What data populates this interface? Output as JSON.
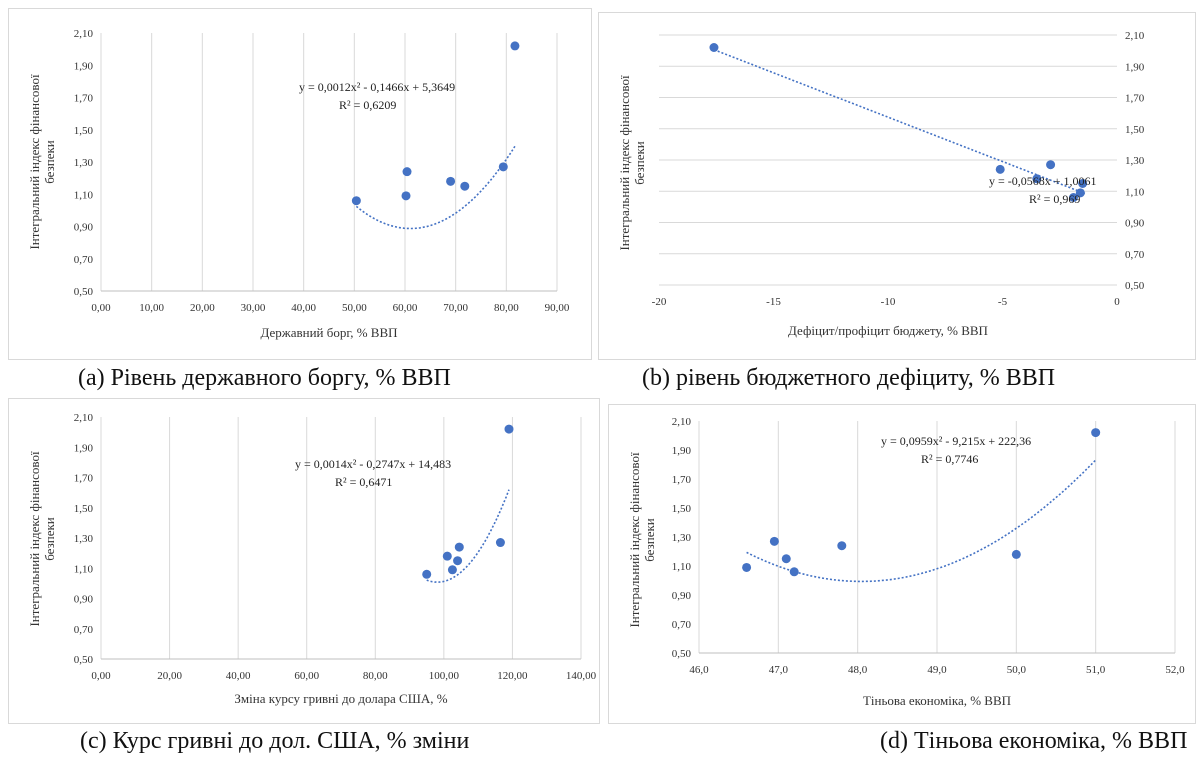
{
  "figures": [
    {
      "caption": "(a) Рівень державного боргу, % ВВП",
      "chart_data": {
        "type": "scatter",
        "xlabel": "Державний борг, % ВВП",
        "ylabel": "Інтегральний індекс фінансової безпеки",
        "xlim": [
          0,
          90
        ],
        "ylim": [
          0.5,
          2.1
        ],
        "x_ticks": [
          "0,00",
          "10,00",
          "20,00",
          "30,00",
          "40,00",
          "50,00",
          "60,00",
          "70,00",
          "80,00",
          "90,00"
        ],
        "y_ticks": [
          "0,50",
          "0,70",
          "0,90",
          "1,10",
          "1,30",
          "1,50",
          "1,70",
          "1,90",
          "2,10"
        ],
        "y_axis_side": "left",
        "grid": "vertical",
        "points": [
          {
            "x": 50.4,
            "y": 1.06
          },
          {
            "x": 60.2,
            "y": 1.09
          },
          {
            "x": 60.4,
            "y": 1.24
          },
          {
            "x": 69.0,
            "y": 1.18
          },
          {
            "x": 71.8,
            "y": 1.15
          },
          {
            "x": 79.4,
            "y": 1.27
          },
          {
            "x": 81.7,
            "y": 2.02
          }
        ],
        "trendline": {
          "kind": "poly2",
          "a": 0.0012,
          "b": -0.1466,
          "c": 5.3649,
          "x_range": [
            50.4,
            81.7
          ]
        },
        "equation": "y = 0,0012x² - 0,1466x + 5,3649",
        "r_squared": "R² = 0,6209"
      }
    },
    {
      "caption": "(b) рівень бюджетного дефіциту, % ВВП",
      "chart_data": {
        "type": "scatter",
        "xlabel": "Дефіцит/профіцит бюджету, % ВВП",
        "ylabel": "Інтегральний індекс фінансової безпеки",
        "xlim": [
          -20,
          0
        ],
        "ylim": [
          0.5,
          2.1
        ],
        "x_ticks": [
          "-20",
          "-15",
          "-10",
          "-5",
          "0"
        ],
        "y_ticks": [
          "0,50",
          "0,70",
          "0,90",
          "1,10",
          "1,30",
          "1,50",
          "1,70",
          "1,90",
          "2,10"
        ],
        "y_axis_side": "right",
        "grid": "horizontal",
        "points": [
          {
            "x": -17.6,
            "y": 2.02
          },
          {
            "x": -5.1,
            "y": 1.24
          },
          {
            "x": -3.5,
            "y": 1.18
          },
          {
            "x": -2.9,
            "y": 1.27
          },
          {
            "x": -1.9,
            "y": 1.06
          },
          {
            "x": -1.6,
            "y": 1.09
          },
          {
            "x": -1.5,
            "y": 1.15
          }
        ],
        "trendline": {
          "kind": "linear",
          "a": -0.0568,
          "b": 1.0061,
          "x_range": [
            -17.6,
            -1.4
          ]
        },
        "equation": "y = -0,0568x + 1,0061",
        "r_squared": "R² = 0,969"
      }
    },
    {
      "caption": "(c) Курс гривні до дол. США, % зміни",
      "chart_data": {
        "type": "scatter",
        "xlabel": "Зміна курсу гривні до долара США, %",
        "ylabel": "Інтегральний індекс фінансової безпеки",
        "xlim": [
          0,
          140
        ],
        "ylim": [
          0.5,
          2.1
        ],
        "x_ticks": [
          "0,00",
          "20,00",
          "40,00",
          "60,00",
          "80,00",
          "100,00",
          "120,00",
          "140,00"
        ],
        "y_ticks": [
          "0,50",
          "0,70",
          "0,90",
          "1,10",
          "1,30",
          "1,50",
          "1,70",
          "1,90",
          "2,10"
        ],
        "y_axis_side": "left",
        "grid": "vertical",
        "points": [
          {
            "x": 95.0,
            "y": 1.06
          },
          {
            "x": 101.0,
            "y": 1.18
          },
          {
            "x": 102.5,
            "y": 1.09
          },
          {
            "x": 104.0,
            "y": 1.15
          },
          {
            "x": 104.5,
            "y": 1.24
          },
          {
            "x": 116.5,
            "y": 1.27
          },
          {
            "x": 119.0,
            "y": 2.02
          }
        ],
        "trendline": {
          "kind": "poly2",
          "a": 0.0014,
          "b": -0.2747,
          "c": 14.483,
          "x_range": [
            95.0,
            119.0
          ]
        },
        "equation": "y = 0,0014x² - 0,2747x + 14,483",
        "r_squared": "R² = 0,6471"
      }
    },
    {
      "caption": "(d) Тіньова економіка, % ВВП",
      "chart_data": {
        "type": "scatter",
        "xlabel": "Тіньова економіка, % ВВП",
        "ylabel": "Інтегральний індекс фінансової безпеки",
        "xlim": [
          46,
          52
        ],
        "ylim": [
          0.5,
          2.1
        ],
        "x_ticks": [
          "46,0",
          "47,0",
          "48,0",
          "49,0",
          "50,0",
          "51,0",
          "52,0"
        ],
        "y_ticks": [
          "0,50",
          "0,70",
          "0,90",
          "1,10",
          "1,30",
          "1,50",
          "1,70",
          "1,90",
          "2,10"
        ],
        "y_axis_side": "left",
        "grid": "vertical",
        "points": [
          {
            "x": 46.6,
            "y": 1.09
          },
          {
            "x": 46.95,
            "y": 1.27
          },
          {
            "x": 47.1,
            "y": 1.15
          },
          {
            "x": 47.2,
            "y": 1.06
          },
          {
            "x": 47.8,
            "y": 1.24
          },
          {
            "x": 50.0,
            "y": 1.18
          },
          {
            "x": 51.0,
            "y": 2.02
          }
        ],
        "trendline": {
          "kind": "poly2",
          "a": 0.0959,
          "b": -9.215,
          "c": 222.36,
          "x_range": [
            46.6,
            51.0
          ]
        },
        "equation": "y = 0,0959x² - 9,215x + 222,36",
        "r_squared": "R² = 0,7746"
      }
    }
  ],
  "colors": {
    "point": "#4472c4",
    "trend": "#4472c4",
    "grid": "#d9d9d9",
    "axis": "#bfbfbf"
  }
}
